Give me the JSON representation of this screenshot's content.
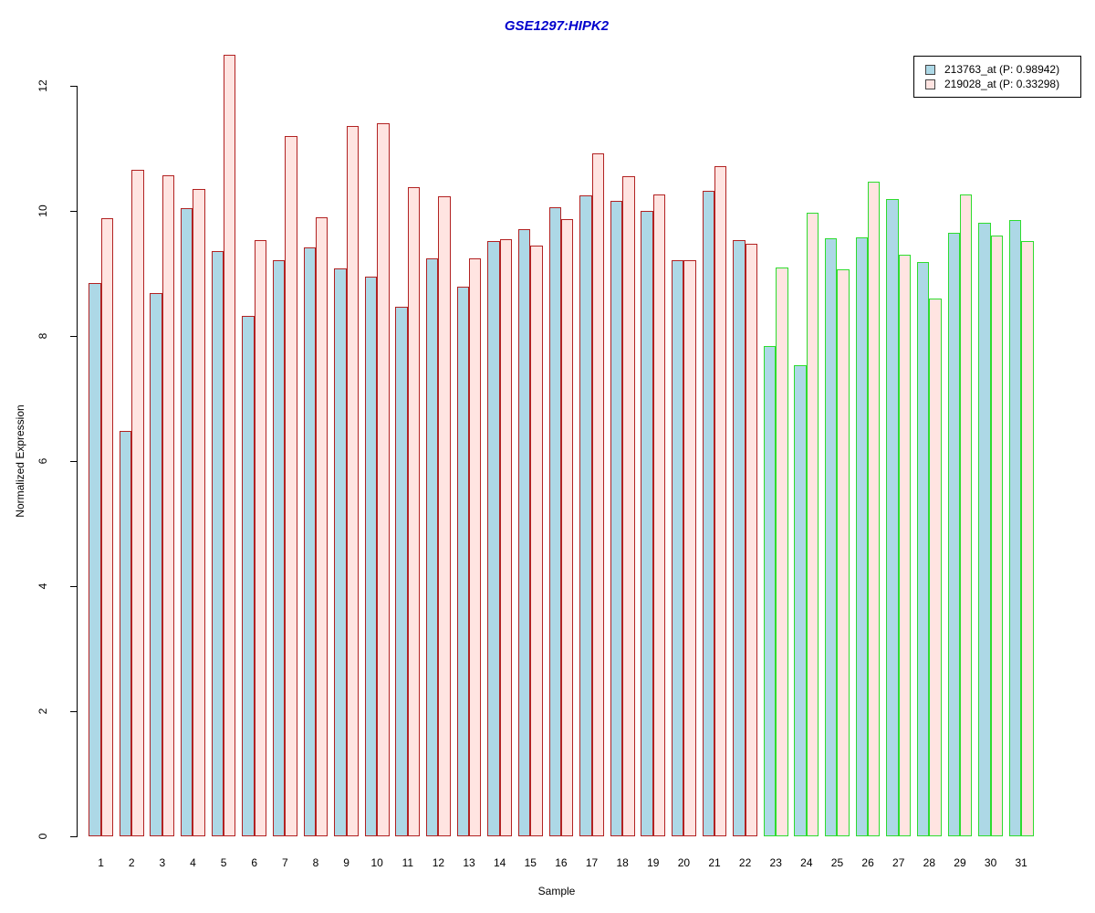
{
  "chart_data": {
    "type": "bar",
    "title": "GSE1297:HIPK2",
    "title_color": "#0000CC",
    "xlabel": "Sample",
    "ylabel": "Normalized Expression",
    "ylim": [
      0,
      12.55
    ],
    "yticks": [
      0,
      2,
      4,
      6,
      8,
      10,
      12
    ],
    "grid": false,
    "legend_position": "top-right",
    "categories": [
      "1",
      "2",
      "3",
      "4",
      "5",
      "6",
      "7",
      "8",
      "9",
      "10",
      "11",
      "12",
      "13",
      "14",
      "15",
      "16",
      "17",
      "18",
      "19",
      "20",
      "21",
      "22",
      "23",
      "24",
      "25",
      "26",
      "27",
      "28",
      "29",
      "30",
      "31"
    ],
    "series": [
      {
        "name": "213763_at (P: 0.98942)",
        "fill": "#ADD8E6",
        "values": [
          8.85,
          6.48,
          8.69,
          10.05,
          9.36,
          8.33,
          9.22,
          9.42,
          9.08,
          8.96,
          8.47,
          9.25,
          8.79,
          9.52,
          9.71,
          10.06,
          10.26,
          10.16,
          10.01,
          9.21,
          10.33,
          9.54,
          7.84,
          7.53,
          9.57,
          9.58,
          10.2,
          9.19,
          9.65,
          9.82,
          9.86
        ]
      },
      {
        "name": "219028_at (P: 0.33298)",
        "fill": "#FFE4E1",
        "values": [
          9.89,
          10.67,
          10.58,
          10.36,
          12.5,
          9.54,
          11.21,
          9.9,
          11.37,
          11.41,
          10.38,
          10.24,
          9.25,
          9.56,
          9.45,
          9.88,
          10.92,
          10.56,
          10.27,
          9.21,
          10.72,
          9.48,
          9.1,
          9.97,
          9.07,
          10.47,
          9.31,
          8.61,
          10.27,
          9.61,
          9.52
        ]
      }
    ],
    "group_border_colors": {
      "red_group": {
        "color": "#B22222",
        "samples": "1-22"
      },
      "green_group": {
        "color": "#2EDC2E",
        "samples": "23-31"
      }
    }
  },
  "legend": {
    "entries": [
      {
        "label": "213763_at (P: 0.98942)",
        "swatch_fill": "#ADD8E6"
      },
      {
        "label": "219028_at (P: 0.33298)",
        "swatch_fill": "#FFE4E1"
      }
    ]
  }
}
